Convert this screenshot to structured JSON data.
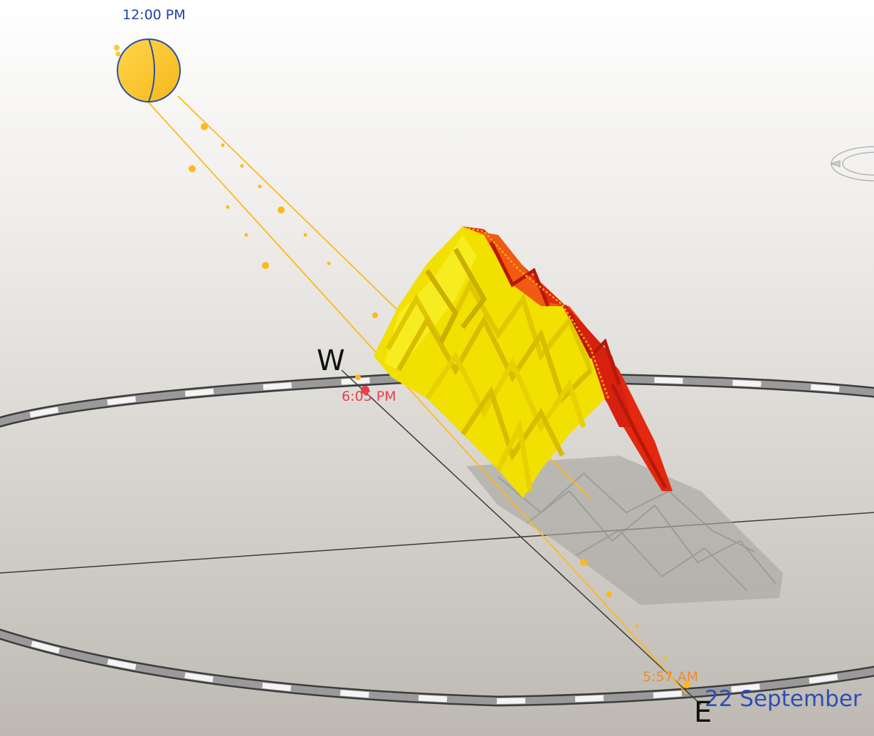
{
  "labels": {
    "noon_time": "12:00 PM",
    "sunset_time": "6:05 PM",
    "sunrise_time": "5:57 AM",
    "date": "22 September"
  },
  "compass": {
    "west": "W",
    "east": "E"
  },
  "icons": {
    "sun": "sun-icon",
    "view_cube": "view-cube-icon"
  },
  "colors": {
    "sun_fill": "#ffc832",
    "sun_outline": "#2a4fa8",
    "sun_path": "#ffb81c",
    "structure_sunlit": "#f2e000",
    "structure_shaded": "#e32810",
    "shadow": "#a9a7a2",
    "compass_ring_dark": "#555555",
    "compass_ring_light": "#f4f4f4"
  }
}
